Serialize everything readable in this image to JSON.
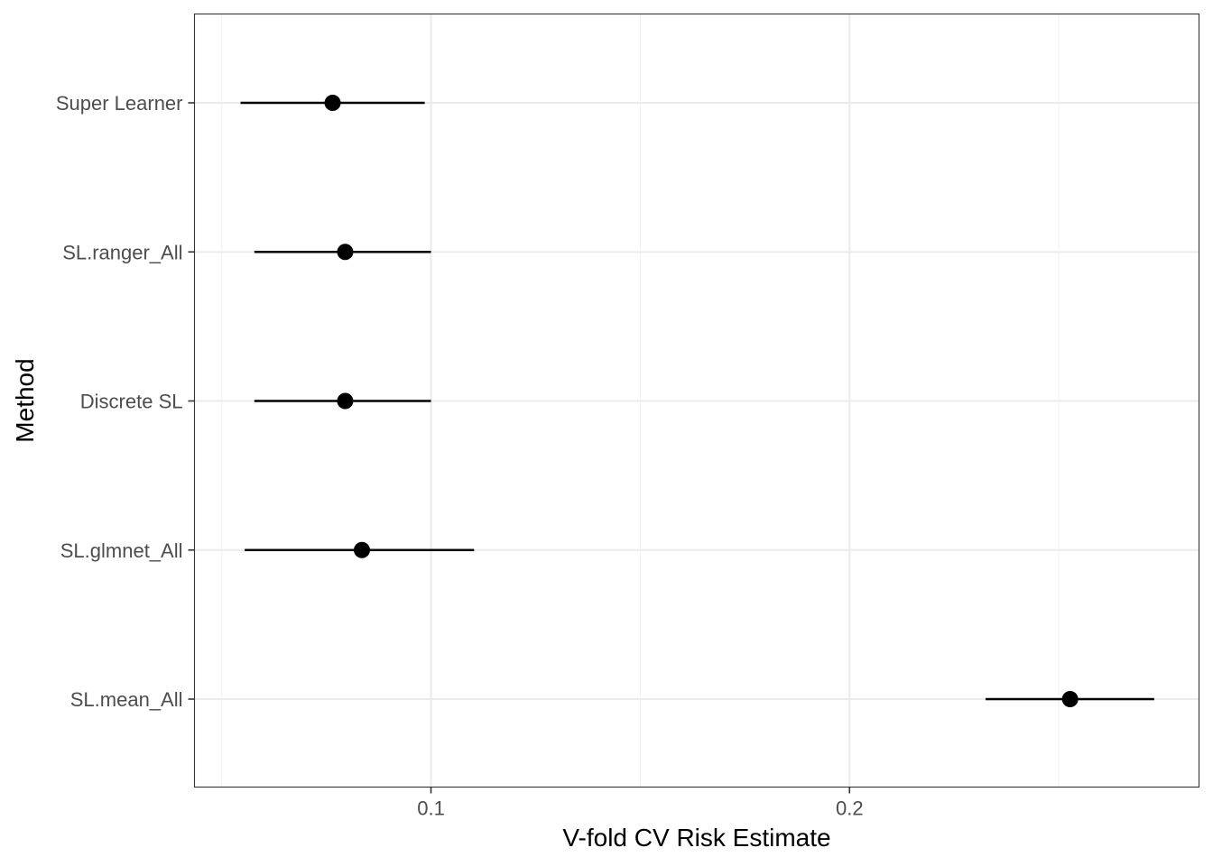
{
  "chart_data": {
    "type": "scatter",
    "subtype": "point-range",
    "title": "",
    "xlabel": "V-fold CV Risk Estimate",
    "ylabel": "Method",
    "xlim": [
      0.0435,
      0.2835
    ],
    "x_ticks": [
      0.1,
      0.2
    ],
    "x_tick_labels": [
      "0.1",
      "0.2"
    ],
    "categories": [
      "Super Learner",
      "SL.ranger_All",
      "Discrete SL",
      "SL.glmnet_All",
      "SL.mean_All"
    ],
    "points": [
      {
        "method": "Super Learner",
        "estimate": 0.0765,
        "lower": 0.0545,
        "upper": 0.0985
      },
      {
        "method": "SL.ranger_All",
        "estimate": 0.0795,
        "lower": 0.0578,
        "upper": 0.1
      },
      {
        "method": "Discrete SL",
        "estimate": 0.0795,
        "lower": 0.0578,
        "upper": 0.1
      },
      {
        "method": "SL.glmnet_All",
        "estimate": 0.0835,
        "lower": 0.0555,
        "upper": 0.1103
      },
      {
        "method": "SL.mean_All",
        "estimate": 0.2527,
        "lower": 0.2325,
        "upper": 0.2728
      }
    ],
    "grid": true,
    "theme": "bw",
    "colors": {
      "point": "#000000",
      "errorbar": "#000000",
      "grid_major": "#ebebeb",
      "grid_minor": "#f2f2f2",
      "panel_border": "#333333",
      "tick_text": "#4d4d4d",
      "axis_title": "#000000"
    }
  }
}
